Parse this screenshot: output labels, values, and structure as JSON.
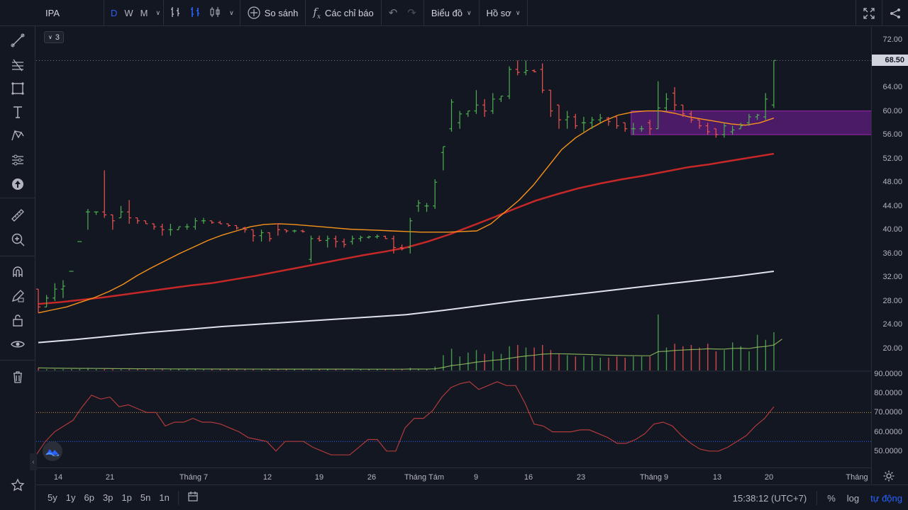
{
  "toolbar": {
    "symbol": "IPA",
    "intervals": [
      "D",
      "W",
      "M"
    ],
    "active_interval": "D",
    "compare_label": "So sánh",
    "indicators_label": "Các chỉ báo",
    "chart_menu_label": "Biểu đồ",
    "profile_menu_label": "Hồ sơ"
  },
  "legend": {
    "count": "3"
  },
  "price_axis": {
    "labels": [
      "72.00",
      "68.00",
      "64.00",
      "60.00",
      "56.00",
      "52.00",
      "48.00",
      "44.00",
      "40.00",
      "36.00",
      "32.00",
      "28.00",
      "24.00",
      "20.00"
    ],
    "current_price": "68.50"
  },
  "osc_axis": {
    "labels": [
      "90.0000",
      "80.0000",
      "70.0000",
      "60.0000",
      "50.0000"
    ]
  },
  "time_axis": {
    "labels": [
      "14",
      "21",
      "Tháng 7",
      "12",
      "19",
      "26",
      "Tháng Tám",
      "9",
      "16",
      "23",
      "Tháng 9",
      "13",
      "20",
      "Tháng"
    ]
  },
  "bottom": {
    "ranges": [
      "5y",
      "1y",
      "6p",
      "3p",
      "1p",
      "5n",
      "1n"
    ],
    "clock": "15:38:12 (UTC+7)",
    "percent": "%",
    "log": "log",
    "auto": "tự động"
  },
  "colors": {
    "up": "#26a69a",
    "up_bar": "#4caf50",
    "down": "#ef5350",
    "ma_fast": "#f7931a",
    "ma_mid": "#c62828",
    "ma_slow": "#e0e3eb",
    "zone": "#7b1fa2",
    "rsi": "#b03a3a"
  },
  "chart_data": {
    "type": "ohlc",
    "price_range": [
      18,
      74
    ],
    "current_price": 68.5,
    "zone": {
      "from_price": 56.0,
      "to_price": 60.0
    },
    "bars": [
      {
        "o": 30,
        "h": 30,
        "l": 26,
        "c": 27
      },
      {
        "o": 27,
        "h": 29,
        "l": 27,
        "c": 28.5
      },
      {
        "o": 28.5,
        "h": 31,
        "l": 28,
        "c": 30
      },
      {
        "o": 30,
        "h": 31.5,
        "l": 28.5,
        "c": 30.5
      },
      {
        "o": 33,
        "h": 33,
        "l": 33,
        "c": 33
      },
      {
        "o": 38,
        "h": 38,
        "l": 38,
        "c": 38
      },
      {
        "o": 43,
        "h": 43.5,
        "l": 40,
        "c": 43
      },
      {
        "o": 43,
        "h": 43,
        "l": 42.5,
        "c": 43
      },
      {
        "o": 43,
        "h": 50,
        "l": 42,
        "c": 42.5
      },
      {
        "o": 42.5,
        "h": 42.5,
        "l": 40,
        "c": 41.5
      },
      {
        "o": 42,
        "h": 44,
        "l": 42,
        "c": 43
      },
      {
        "o": 43,
        "h": 45,
        "l": 41,
        "c": 42
      },
      {
        "o": 42,
        "h": 42,
        "l": 41,
        "c": 41.5
      },
      {
        "o": 41.5,
        "h": 41.5,
        "l": 41,
        "c": 41
      },
      {
        "o": 41,
        "h": 41,
        "l": 40,
        "c": 40.5
      },
      {
        "o": 40.5,
        "h": 41,
        "l": 39,
        "c": 40
      },
      {
        "o": 40,
        "h": 41,
        "l": 39,
        "c": 40
      },
      {
        "o": 40,
        "h": 40.5,
        "l": 40,
        "c": 40.5
      },
      {
        "o": 40.5,
        "h": 41,
        "l": 40,
        "c": 40.5
      },
      {
        "o": 40.5,
        "h": 42,
        "l": 40,
        "c": 41.5
      },
      {
        "o": 41.5,
        "h": 42,
        "l": 41,
        "c": 41.5
      },
      {
        "o": 41.5,
        "h": 41.5,
        "l": 41,
        "c": 41.2
      },
      {
        "o": 41.2,
        "h": 41.5,
        "l": 41,
        "c": 41
      },
      {
        "o": 41,
        "h": 41,
        "l": 40.5,
        "c": 40.7
      },
      {
        "o": 40.7,
        "h": 40.7,
        "l": 40,
        "c": 40.3
      },
      {
        "o": 40.3,
        "h": 40.5,
        "l": 39.5,
        "c": 40
      },
      {
        "o": 40,
        "h": 40,
        "l": 38,
        "c": 39
      },
      {
        "o": 39,
        "h": 40,
        "l": 38,
        "c": 39.5
      },
      {
        "o": 39.5,
        "h": 39.5,
        "l": 38,
        "c": 38.5
      },
      {
        "o": 41,
        "h": 41,
        "l": 39,
        "c": 40
      },
      {
        "o": 40,
        "h": 40,
        "l": 39.5,
        "c": 39.8
      },
      {
        "o": 39.8,
        "h": 40,
        "l": 39.5,
        "c": 39.8
      },
      {
        "o": 39.8,
        "h": 40,
        "l": 39.5,
        "c": 39.7
      },
      {
        "o": 35,
        "h": 39,
        "l": 34.5,
        "c": 38.5
      },
      {
        "o": 38.5,
        "h": 39,
        "l": 38,
        "c": 38.2
      },
      {
        "o": 38.2,
        "h": 39,
        "l": 37,
        "c": 38.5
      },
      {
        "o": 38.5,
        "h": 39,
        "l": 37,
        "c": 38
      },
      {
        "o": 38,
        "h": 38.5,
        "l": 37,
        "c": 37.5
      },
      {
        "o": 38,
        "h": 39,
        "l": 37.5,
        "c": 38.5
      },
      {
        "o": 38.5,
        "h": 39,
        "l": 38,
        "c": 38.7
      },
      {
        "o": 38.7,
        "h": 39,
        "l": 38.5,
        "c": 38.8
      },
      {
        "o": 38.8,
        "h": 39.2,
        "l": 38.5,
        "c": 38.9
      },
      {
        "o": 38.9,
        "h": 39,
        "l": 38.5,
        "c": 38.5
      },
      {
        "o": 38.5,
        "h": 39,
        "l": 36,
        "c": 37
      },
      {
        "o": 37,
        "h": 37.5,
        "l": 36.5,
        "c": 36.8
      },
      {
        "o": 37,
        "h": 42,
        "l": 36,
        "c": 41.5
      },
      {
        "o": 44,
        "h": 45,
        "l": 43,
        "c": 44.5
      },
      {
        "o": 44,
        "h": 44.5,
        "l": 43,
        "c": 44
      },
      {
        "o": 44,
        "h": 48.5,
        "l": 43.5,
        "c": 48
      },
      {
        "o": 53,
        "h": 54,
        "l": 50,
        "c": 54
      },
      {
        "o": 57,
        "h": 62,
        "l": 56.5,
        "c": 61.5
      },
      {
        "o": 58,
        "h": 60,
        "l": 57,
        "c": 59.5
      },
      {
        "o": 59.5,
        "h": 60,
        "l": 59,
        "c": 60
      },
      {
        "o": 60,
        "h": 63.5,
        "l": 59.5,
        "c": 61
      },
      {
        "o": 61,
        "h": 62,
        "l": 59,
        "c": 60
      },
      {
        "o": 60,
        "h": 63,
        "l": 59.5,
        "c": 62
      },
      {
        "o": 62,
        "h": 62.5,
        "l": 61.5,
        "c": 62.5
      },
      {
        "o": 62.5,
        "h": 67.5,
        "l": 62,
        "c": 67
      },
      {
        "o": 67,
        "h": 68.5,
        "l": 66,
        "c": 66.5
      },
      {
        "o": 66.5,
        "h": 68.5,
        "l": 66,
        "c": 66.8
      },
      {
        "o": 66.8,
        "h": 67,
        "l": 66.5,
        "c": 66.6
      },
      {
        "o": 67,
        "h": 68,
        "l": 63,
        "c": 63.5
      },
      {
        "o": 63.5,
        "h": 63.5,
        "l": 59,
        "c": 60
      },
      {
        "o": 61,
        "h": 61,
        "l": 57,
        "c": 58.5
      },
      {
        "o": 58.5,
        "h": 60,
        "l": 57,
        "c": 59
      },
      {
        "o": 59,
        "h": 59.5,
        "l": 57,
        "c": 57.5
      },
      {
        "o": 58,
        "h": 59,
        "l": 56.5,
        "c": 58
      },
      {
        "o": 58,
        "h": 59,
        "l": 57,
        "c": 58.5
      },
      {
        "o": 58.5,
        "h": 59.5,
        "l": 58,
        "c": 58.8
      },
      {
        "o": 58.8,
        "h": 59,
        "l": 57.5,
        "c": 58.2
      },
      {
        "o": 59,
        "h": 59,
        "l": 57,
        "c": 57.5
      },
      {
        "o": 58,
        "h": 58,
        "l": 56.5,
        "c": 57
      },
      {
        "o": 57,
        "h": 58,
        "l": 56,
        "c": 57
      },
      {
        "o": 57,
        "h": 57.5,
        "l": 56.5,
        "c": 57
      },
      {
        "o": 58,
        "h": 58.5,
        "l": 56,
        "c": 57
      },
      {
        "o": 57,
        "h": 65,
        "l": 57,
        "c": 60.5
      },
      {
        "o": 60.5,
        "h": 63,
        "l": 60,
        "c": 62
      },
      {
        "o": 63,
        "h": 64,
        "l": 60,
        "c": 61
      },
      {
        "o": 61,
        "h": 61,
        "l": 59,
        "c": 59.5
      },
      {
        "o": 59.5,
        "h": 60,
        "l": 58,
        "c": 58.5
      },
      {
        "o": 58.5,
        "h": 58.5,
        "l": 57,
        "c": 57.5
      },
      {
        "o": 57.5,
        "h": 58,
        "l": 56,
        "c": 56.5
      },
      {
        "o": 57,
        "h": 57,
        "l": 55.5,
        "c": 56
      },
      {
        "o": 56,
        "h": 58,
        "l": 55.5,
        "c": 57.5
      },
      {
        "o": 56.5,
        "h": 57.5,
        "l": 56,
        "c": 56.8
      },
      {
        "o": 57,
        "h": 58,
        "l": 57,
        "c": 57.5
      },
      {
        "o": 58,
        "h": 59.5,
        "l": 57.5,
        "c": 59
      },
      {
        "o": 59,
        "h": 59.5,
        "l": 58.5,
        "c": 59.3
      },
      {
        "o": 59,
        "h": 63,
        "l": 58.5,
        "c": 62
      },
      {
        "o": 61,
        "h": 68.5,
        "l": 60.5,
        "c": 68.5
      }
    ],
    "volume_max": 100,
    "volume": [
      2,
      1,
      1,
      1,
      1,
      1,
      2,
      1,
      1,
      1,
      1,
      1,
      1,
      1,
      1,
      1,
      1,
      1,
      1,
      1,
      1,
      1,
      1,
      1,
      1,
      1,
      1,
      1,
      1,
      1,
      1,
      1,
      1,
      1,
      1,
      1,
      1,
      1,
      1,
      1,
      1,
      1,
      1,
      1,
      1,
      2,
      1,
      1,
      3,
      12,
      17,
      11,
      14,
      16,
      13,
      15,
      13,
      19,
      20,
      18,
      18,
      20,
      16,
      13,
      12,
      11,
      11,
      11,
      10,
      10,
      11,
      10,
      11,
      11,
      11,
      44,
      18,
      21,
      19,
      20,
      18,
      21,
      15,
      16,
      22,
      19,
      15,
      28,
      24,
      30,
      66
    ],
    "ma_fast": [
      26,
      26.5,
      27,
      27.8,
      28.6,
      29.6,
      30.8,
      32.3,
      33.6,
      34.8,
      36,
      37.1,
      38.2,
      39.1,
      39.8,
      40.5,
      40.9,
      41,
      40.9,
      40.7,
      40.5,
      40.3,
      40.1,
      40,
      39.9,
      39.8,
      39.7,
      39.6,
      39.6,
      39.6,
      39.7,
      39.8,
      41,
      43,
      45,
      47.5,
      50.5,
      53.5,
      55.5,
      57,
      58.3,
      59.3,
      59.8,
      60,
      60,
      59.6,
      59,
      58.6,
      58.2,
      57.8,
      57.6,
      58,
      58.8
    ],
    "ma_mid": [
      27.5,
      27.8,
      28.2,
      28.6,
      29.1,
      29.6,
      30.1,
      30.6,
      31,
      31.6,
      32.2,
      32.9,
      33.6,
      34.3,
      35,
      35.7,
      36.3,
      37,
      38,
      39.2,
      40.6,
      42,
      43.5,
      44.9,
      46,
      47,
      47.8,
      48.5,
      49.1,
      49.8,
      50.5,
      51,
      51.6,
      52.2,
      52.8
    ],
    "ma_slow": [
      21,
      21.5,
      22.1,
      22.7,
      23.2,
      23.7,
      24.1,
      24.5,
      24.9,
      25.3,
      25.7,
      26.4,
      27.2,
      28,
      28.7,
      29.4,
      30.1,
      30.8,
      31.5,
      32.2,
      33
    ],
    "rsi_range": [
      40,
      90
    ],
    "rsi_levels": [
      70,
      55
    ],
    "rsi": [
      48,
      55,
      60,
      63,
      66,
      73,
      79,
      77,
      78,
      73,
      74,
      72,
      70,
      70,
      63,
      65,
      65,
      67,
      65,
      65,
      64,
      62,
      60,
      57,
      56,
      55,
      50,
      55,
      55,
      55,
      52,
      50,
      48,
      48,
      48,
      52,
      56,
      56,
      50,
      50,
      62,
      67,
      67,
      71,
      78,
      83,
      85,
      86,
      82,
      84,
      86,
      84,
      84,
      75,
      64,
      63,
      60,
      60,
      60,
      61,
      61,
      59,
      57,
      54,
      54,
      56,
      59,
      64,
      65,
      63,
      58,
      54,
      51,
      50,
      50,
      52,
      55,
      58,
      63,
      67,
      73
    ]
  }
}
